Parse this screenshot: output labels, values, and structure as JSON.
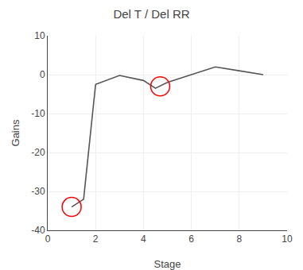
{
  "chart_data": {
    "type": "line",
    "title": "Del T / Del RR",
    "xlabel": "Stage",
    "ylabel": "Gains",
    "x": [
      1,
      1.5,
      2,
      3,
      4,
      4.5,
      5,
      6,
      7,
      8,
      9
    ],
    "series": [
      {
        "values": [
          -34,
          -32,
          -2.5,
          -0.2,
          -1.5,
          -3.5,
          -2.0,
          0.0,
          2.0,
          1.0,
          0.0
        ],
        "color": "#555555",
        "line_style": "solid"
      },
      {
        "type": "scatter",
        "x": [
          1.0,
          4.7
        ],
        "values": [
          -34,
          -3.0
        ],
        "color": "red",
        "marker": "open circle"
      }
    ],
    "xlim": [
      0,
      10
    ],
    "ylim": [
      -40,
      10
    ],
    "xticks": [
      0,
      2,
      4,
      6,
      8,
      10
    ],
    "yticks": [
      -40,
      -30,
      -20,
      -10,
      0,
      10
    ],
    "grid": true
  }
}
